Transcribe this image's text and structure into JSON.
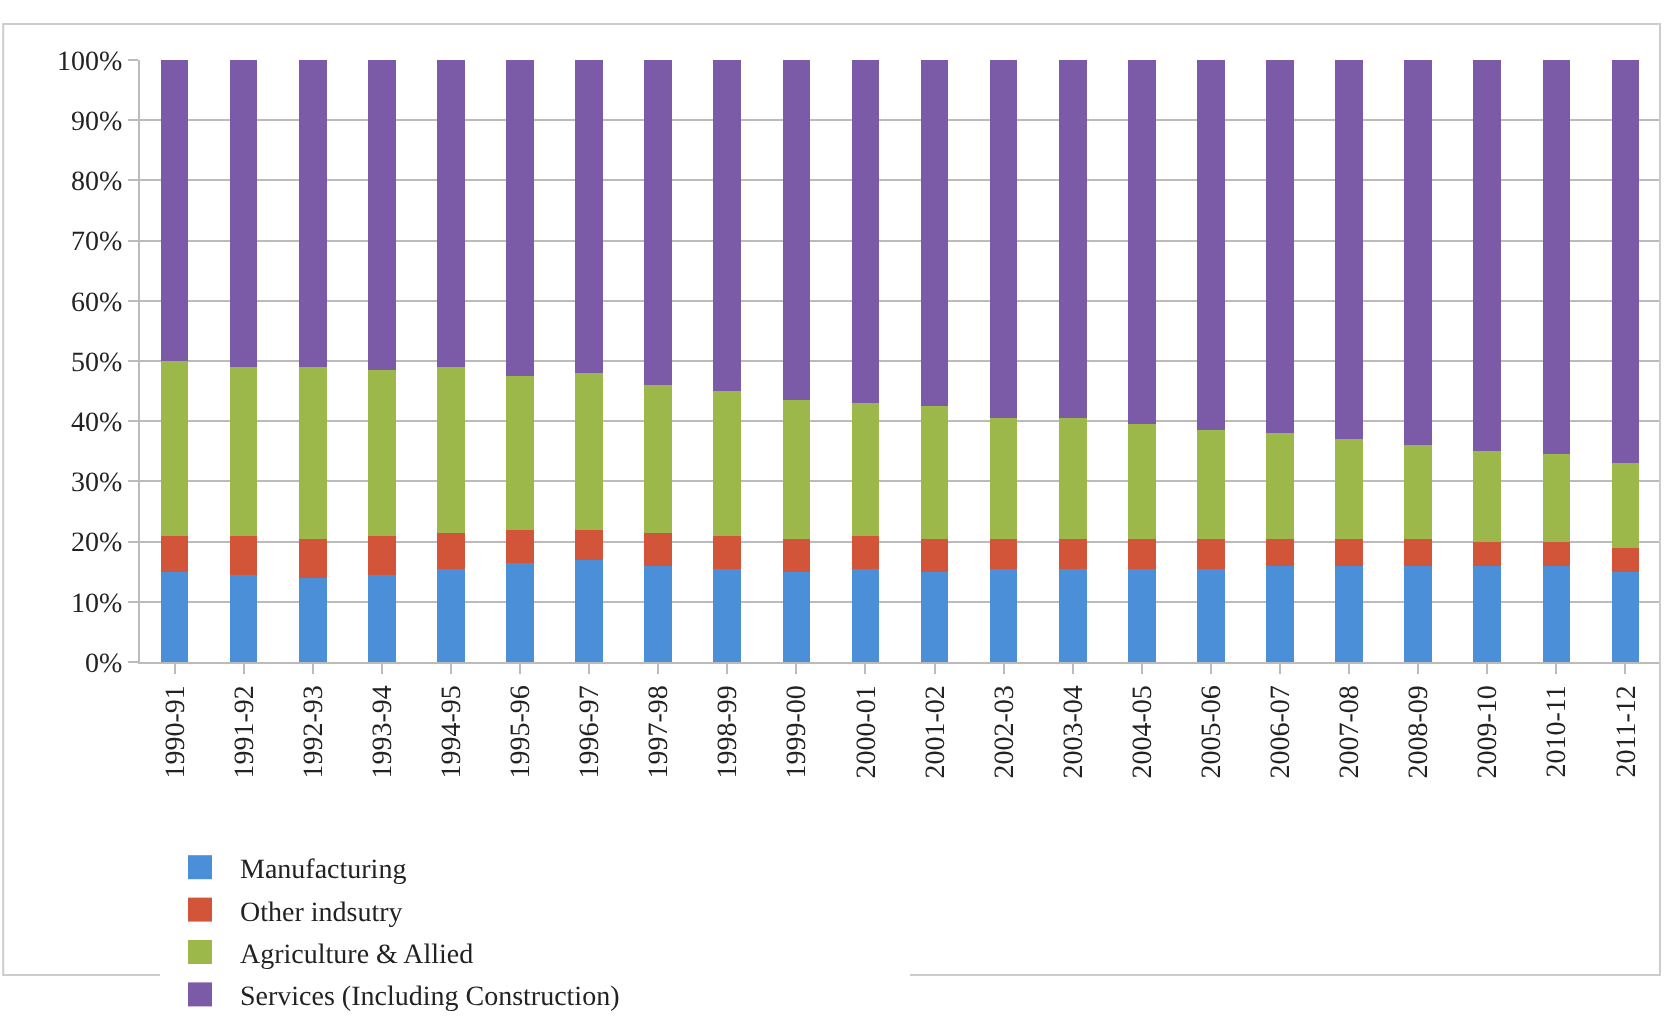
{
  "chart_data": {
    "type": "bar",
    "stacked": true,
    "categories": [
      "1990-91",
      "1991-92",
      "1992-93",
      "1993-94",
      "1994-95",
      "1995-96",
      "1996-97",
      "1997-98",
      "1998-99",
      "1999-00",
      "2000-01",
      "2001-02",
      "2002-03",
      "2003-04",
      "2004-05",
      "2005-06",
      "2006-07",
      "2007-08",
      "2008-09",
      "2009-10",
      "2010-11",
      "2011-12"
    ],
    "series": [
      {
        "name": "Manufacturing",
        "color": "#4a8fd8",
        "values": [
          15,
          14.5,
          14,
          14.5,
          15.5,
          16.5,
          17,
          16,
          15.5,
          15,
          15.5,
          15,
          15.5,
          15.5,
          15.5,
          15.5,
          16,
          16,
          16,
          16,
          16,
          15
        ]
      },
      {
        "name": "Other indsutry",
        "color": "#d2553a",
        "values": [
          6,
          6.5,
          6.5,
          6.5,
          6,
          5.5,
          5,
          5.5,
          5.5,
          5.5,
          5.5,
          5.5,
          5,
          5,
          5,
          5,
          4.5,
          4.5,
          4.5,
          4,
          4,
          4
        ]
      },
      {
        "name": "Agriculture & Allied",
        "color": "#9cb84a",
        "values": [
          29,
          28,
          28.5,
          27.5,
          27.5,
          25.5,
          26,
          24.5,
          24,
          23,
          22,
          22,
          20,
          20,
          19,
          18,
          17.5,
          16.5,
          15.5,
          15,
          14.5,
          14
        ]
      },
      {
        "name": "Services (Including Construction)",
        "color": "#7b5aa8",
        "values": [
          50,
          51,
          51,
          51.5,
          51,
          52.5,
          52,
          54,
          55,
          56.5,
          57,
          57.5,
          59.5,
          59.5,
          60.5,
          61.5,
          62,
          63,
          64,
          65,
          65.5,
          67
        ]
      }
    ],
    "ylim": [
      0,
      100
    ],
    "yticks": [
      {
        "value": 0,
        "label": "0%"
      },
      {
        "value": 10,
        "label": "10%"
      },
      {
        "value": 20,
        "label": "20%"
      },
      {
        "value": 30,
        "label": "30%"
      },
      {
        "value": 40,
        "label": "40%"
      },
      {
        "value": 50,
        "label": "50%"
      },
      {
        "value": 60,
        "label": "60%"
      },
      {
        "value": 70,
        "label": "70%"
      },
      {
        "value": 80,
        "label": "80%"
      },
      {
        "value": 90,
        "label": "90%"
      },
      {
        "value": 100,
        "label": "100%"
      }
    ],
    "grid": "y",
    "legend": "bottom"
  }
}
